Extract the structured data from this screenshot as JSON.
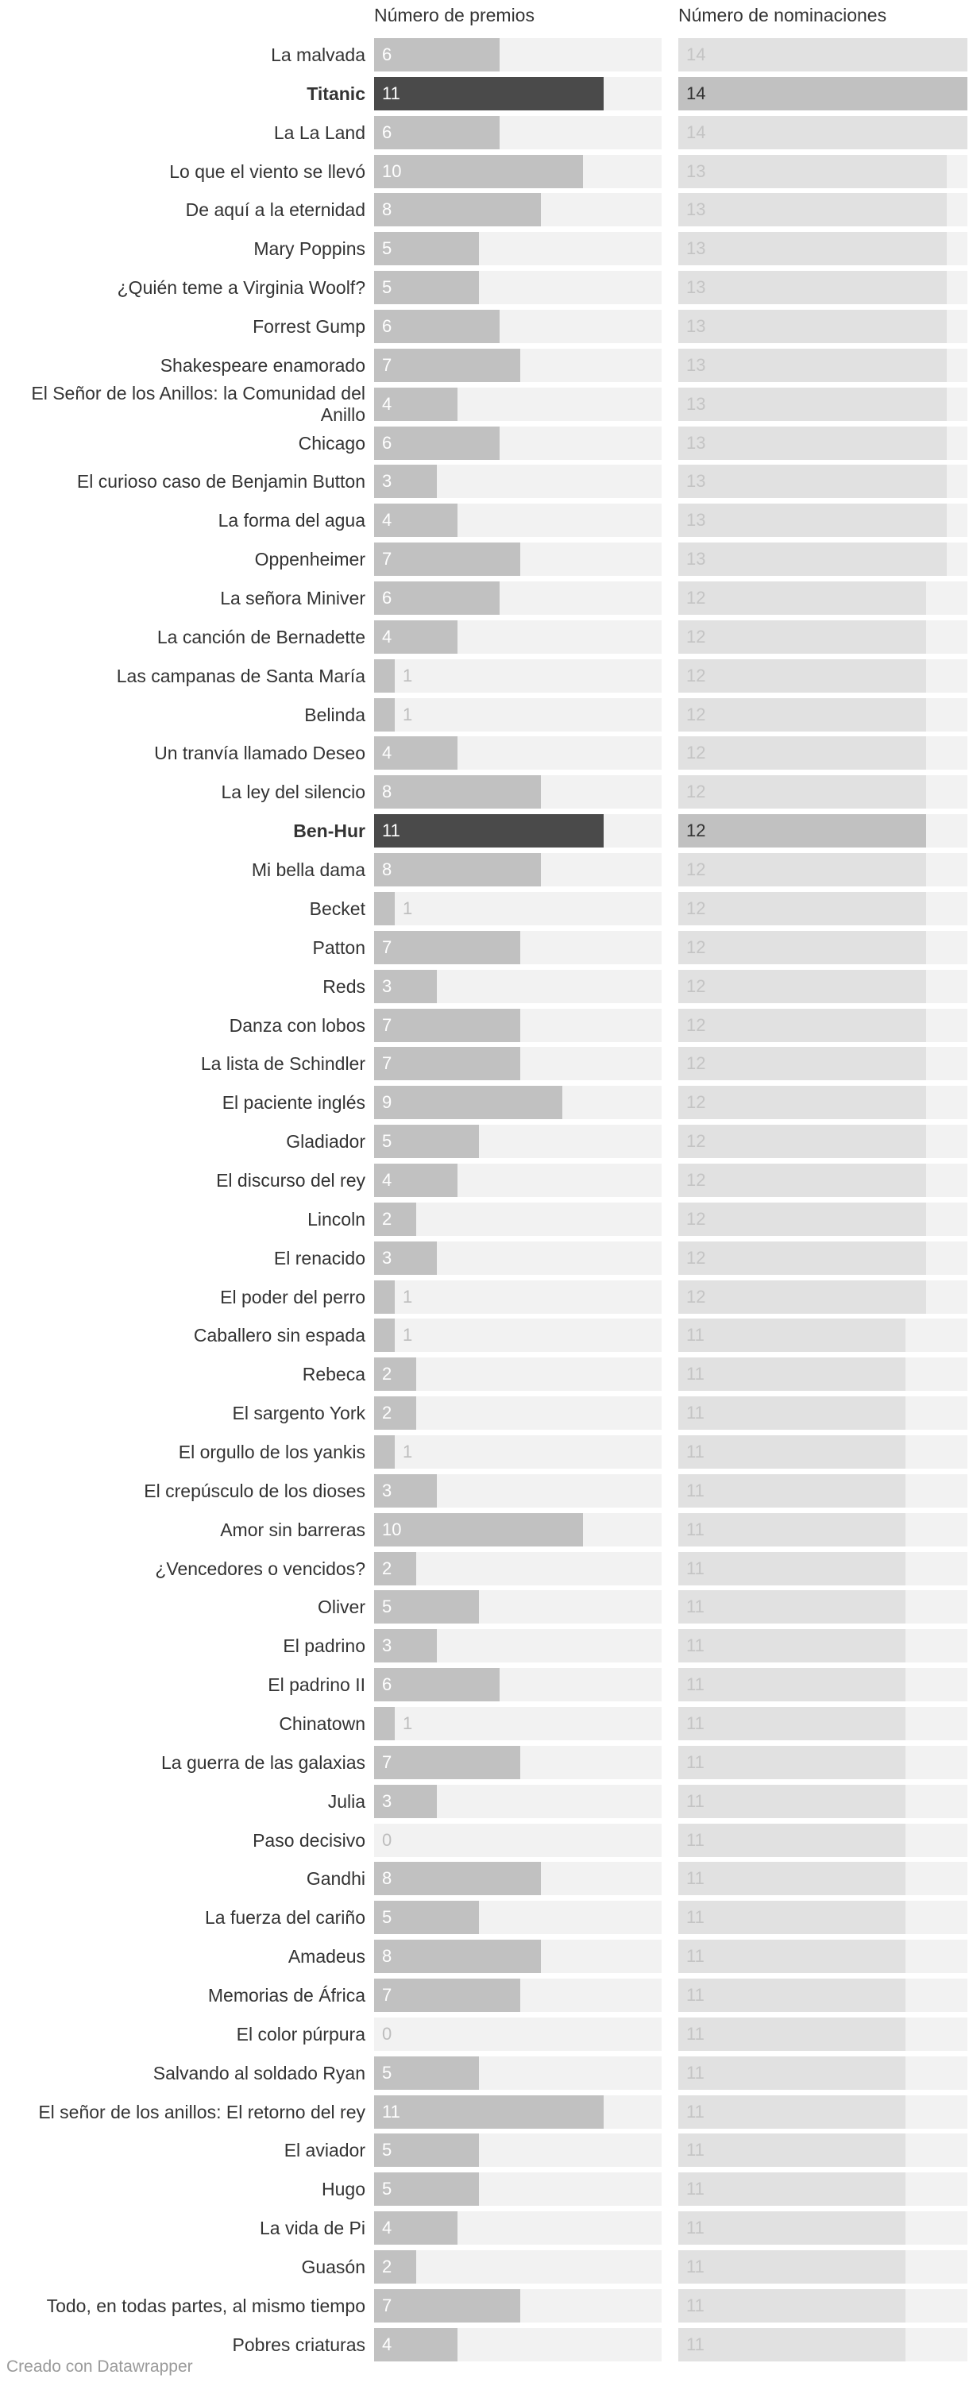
{
  "headers": {
    "awards": "Número de premios",
    "nominations": "Número de nominaciones"
  },
  "footer": "Creado con Datawrapper",
  "colors": {
    "bar": "#c1c1c1",
    "highlight": "#4a4a4a",
    "nominations_bar": "#e1e1e1",
    "track": "#f2f2f2"
  },
  "chart_data": {
    "type": "bar",
    "orientation": "horizontal",
    "series": [
      {
        "name": "Número de premios",
        "max": 14
      },
      {
        "name": "Número de nominaciones",
        "max": 14
      }
    ],
    "rows": [
      {
        "label": "La malvada",
        "awards": 6,
        "nominations": 14
      },
      {
        "label": "Titanic",
        "awards": 11,
        "nominations": 14,
        "highlight": true
      },
      {
        "label": "La La Land",
        "awards": 6,
        "nominations": 14
      },
      {
        "label": "Lo que el viento se llevó",
        "awards": 10,
        "nominations": 13
      },
      {
        "label": "De aquí a la eternidad",
        "awards": 8,
        "nominations": 13
      },
      {
        "label": "Mary Poppins",
        "awards": 5,
        "nominations": 13
      },
      {
        "label": "¿Quién teme a Virginia Woolf?",
        "awards": 5,
        "nominations": 13
      },
      {
        "label": "Forrest Gump",
        "awards": 6,
        "nominations": 13
      },
      {
        "label": "Shakespeare enamorado",
        "awards": 7,
        "nominations": 13
      },
      {
        "label": "El Señor de los Anillos: la Comunidad del Anillo",
        "awards": 4,
        "nominations": 13
      },
      {
        "label": "Chicago",
        "awards": 6,
        "nominations": 13
      },
      {
        "label": "El curioso caso de Benjamin Button",
        "awards": 3,
        "nominations": 13
      },
      {
        "label": "La forma del agua",
        "awards": 4,
        "nominations": 13
      },
      {
        "label": "Oppenheimer",
        "awards": 7,
        "nominations": 13
      },
      {
        "label": "La señora Miniver",
        "awards": 6,
        "nominations": 12
      },
      {
        "label": "La canción de Bernadette",
        "awards": 4,
        "nominations": 12
      },
      {
        "label": "Las campanas de Santa María",
        "awards": 1,
        "nominations": 12
      },
      {
        "label": "Belinda",
        "awards": 1,
        "nominations": 12
      },
      {
        "label": "Un tranvía llamado Deseo",
        "awards": 4,
        "nominations": 12
      },
      {
        "label": "La ley del silencio",
        "awards": 8,
        "nominations": 12
      },
      {
        "label": "Ben-Hur",
        "awards": 11,
        "nominations": 12,
        "highlight": true
      },
      {
        "label": "Mi bella dama",
        "awards": 8,
        "nominations": 12
      },
      {
        "label": "Becket",
        "awards": 1,
        "nominations": 12
      },
      {
        "label": "Patton",
        "awards": 7,
        "nominations": 12
      },
      {
        "label": "Reds",
        "awards": 3,
        "nominations": 12
      },
      {
        "label": "Danza con lobos",
        "awards": 7,
        "nominations": 12
      },
      {
        "label": "La lista de Schindler",
        "awards": 7,
        "nominations": 12
      },
      {
        "label": "El paciente inglés",
        "awards": 9,
        "nominations": 12
      },
      {
        "label": "Gladiador",
        "awards": 5,
        "nominations": 12
      },
      {
        "label": "El discurso del rey",
        "awards": 4,
        "nominations": 12
      },
      {
        "label": "Lincoln",
        "awards": 2,
        "nominations": 12
      },
      {
        "label": "El renacido",
        "awards": 3,
        "nominations": 12
      },
      {
        "label": "El poder del perro",
        "awards": 1,
        "nominations": 12
      },
      {
        "label": "Caballero sin espada",
        "awards": 1,
        "nominations": 11
      },
      {
        "label": "Rebeca",
        "awards": 2,
        "nominations": 11
      },
      {
        "label": "El sargento York",
        "awards": 2,
        "nominations": 11
      },
      {
        "label": "El orgullo de los yankis",
        "awards": 1,
        "nominations": 11
      },
      {
        "label": "El crepúsculo de los dioses",
        "awards": 3,
        "nominations": 11
      },
      {
        "label": "Amor sin barreras",
        "awards": 10,
        "nominations": 11
      },
      {
        "label": "¿Vencedores o vencidos?",
        "awards": 2,
        "nominations": 11
      },
      {
        "label": "Oliver",
        "awards": 5,
        "nominations": 11
      },
      {
        "label": "El padrino",
        "awards": 3,
        "nominations": 11
      },
      {
        "label": "El padrino II",
        "awards": 6,
        "nominations": 11
      },
      {
        "label": "Chinatown",
        "awards": 1,
        "nominations": 11
      },
      {
        "label": "La guerra de las galaxias",
        "awards": 7,
        "nominations": 11
      },
      {
        "label": "Julia",
        "awards": 3,
        "nominations": 11
      },
      {
        "label": "Paso decisivo",
        "awards": 0,
        "nominations": 11
      },
      {
        "label": "Gandhi",
        "awards": 8,
        "nominations": 11
      },
      {
        "label": "La fuerza del cariño",
        "awards": 5,
        "nominations": 11
      },
      {
        "label": "Amadeus",
        "awards": 8,
        "nominations": 11
      },
      {
        "label": "Memorias de África",
        "awards": 7,
        "nominations": 11
      },
      {
        "label": "El color púrpura",
        "awards": 0,
        "nominations": 11
      },
      {
        "label": "Salvando al soldado Ryan",
        "awards": 5,
        "nominations": 11
      },
      {
        "label": "El señor de los anillos: El retorno del rey",
        "awards": 11,
        "nominations": 11
      },
      {
        "label": "El aviador",
        "awards": 5,
        "nominations": 11
      },
      {
        "label": "Hugo",
        "awards": 5,
        "nominations": 11
      },
      {
        "label": "La vida de Pi",
        "awards": 4,
        "nominations": 11
      },
      {
        "label": "Guasón",
        "awards": 2,
        "nominations": 11
      },
      {
        "label": "Todo, en todas partes, al mismo tiempo",
        "awards": 7,
        "nominations": 11
      },
      {
        "label": "Pobres criaturas",
        "awards": 4,
        "nominations": 11
      }
    ]
  }
}
